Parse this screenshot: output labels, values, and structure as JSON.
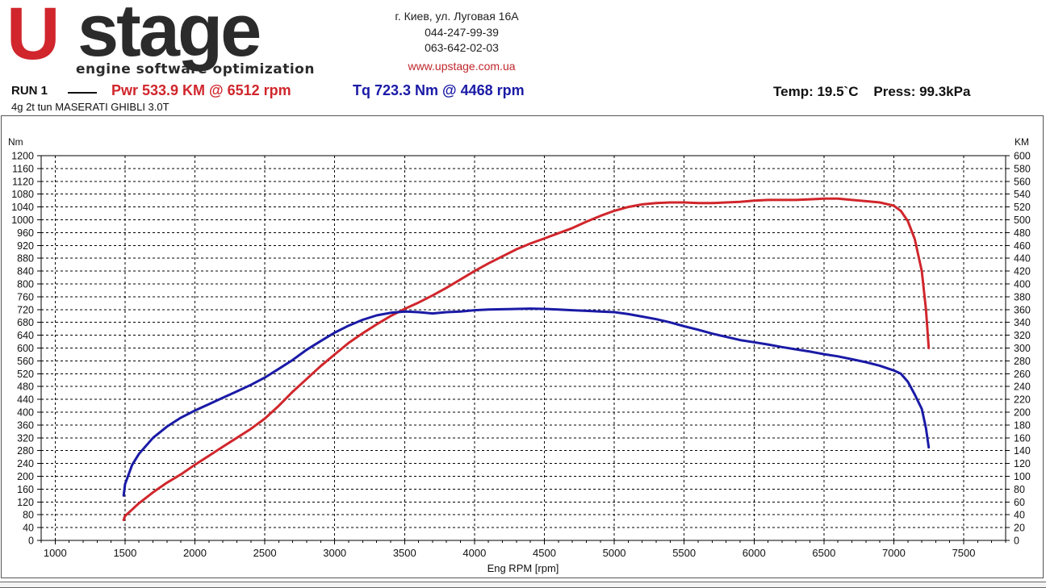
{
  "logo": {
    "brand_part1": "U",
    "brand_part2": "stage",
    "tagline": "engine software optimization"
  },
  "contact": {
    "address": "г. Киев, ул. Луговая 16А",
    "phone1": "044-247-99-39",
    "phone2": "063-642-02-03",
    "website": "www.upstage.com.ua"
  },
  "run": {
    "label": "RUN 1",
    "power_summary": "Pwr  533.9 KM @ 6512 rpm",
    "torque_summary": "Tq 723.3 Nm @ 4468 rpm",
    "conditions": "Temp: 19.5`C    Press: 99.3kPa",
    "vehicle": "4g 2t tun MASERATI GHIBLI 3.0T"
  },
  "colors": {
    "power": "#d0262c",
    "torque": "#1a1aa6",
    "brand_red": "#d0262c",
    "grid": "#000000"
  },
  "chart_data": {
    "type": "line",
    "xlabel": "Eng RPM [rpm]",
    "ylabel_left": "Nm",
    "ylabel_right": "KM",
    "xlim": [
      900,
      7800
    ],
    "xticks": [
      1000,
      1500,
      2000,
      2500,
      3000,
      3500,
      4000,
      4500,
      5000,
      5500,
      6000,
      6500,
      7000,
      7500
    ],
    "ylim_left": [
      0,
      1200
    ],
    "yticks_left_step": 40,
    "ylim_right": [
      0,
      600
    ],
    "yticks_right_step": 20,
    "grid": true,
    "series": [
      {
        "name": "Pwr",
        "axis": "right",
        "color": "#d0262c",
        "x": [
          1490,
          1500,
          1550,
          1600,
          1700,
          1800,
          1900,
          2000,
          2100,
          2200,
          2300,
          2400,
          2500,
          2600,
          2700,
          2800,
          2900,
          3000,
          3100,
          3200,
          3300,
          3400,
          3500,
          3600,
          3700,
          3800,
          3900,
          4000,
          4100,
          4200,
          4300,
          4400,
          4500,
          4600,
          4700,
          4800,
          4900,
          5000,
          5100,
          5200,
          5300,
          5400,
          5500,
          5600,
          5700,
          5800,
          5900,
          6000,
          6100,
          6200,
          6300,
          6400,
          6500,
          6600,
          6700,
          6800,
          6900,
          7000,
          7050,
          7100,
          7150,
          7200,
          7230,
          7250
        ],
        "values": [
          32,
          38,
          48,
          58,
          75,
          90,
          103,
          118,
          132,
          146,
          160,
          174,
          190,
          210,
          232,
          252,
          272,
          290,
          308,
          323,
          337,
          350,
          361,
          371,
          382,
          394,
          407,
          420,
          432,
          443,
          454,
          463,
          471,
          479,
          487,
          497,
          506,
          514,
          520,
          524,
          526,
          527,
          527,
          526,
          526,
          527,
          528,
          530,
          531,
          531,
          531,
          532,
          533,
          533,
          531,
          529,
          527,
          522,
          514,
          498,
          470,
          420,
          360,
          300
        ]
      },
      {
        "name": "Tq",
        "axis": "left",
        "color": "#1a1aa6",
        "x": [
          1490,
          1500,
          1550,
          1600,
          1700,
          1800,
          1900,
          2000,
          2100,
          2200,
          2300,
          2400,
          2500,
          2600,
          2700,
          2800,
          2900,
          3000,
          3100,
          3200,
          3300,
          3400,
          3500,
          3600,
          3700,
          3800,
          3900,
          4000,
          4100,
          4200,
          4300,
          4400,
          4500,
          4600,
          4700,
          4800,
          4900,
          5000,
          5100,
          5200,
          5300,
          5400,
          5500,
          5600,
          5700,
          5800,
          5900,
          6000,
          6100,
          6200,
          6300,
          6400,
          6500,
          6600,
          6700,
          6800,
          6900,
          7000,
          7050,
          7100,
          7150,
          7200,
          7230,
          7250
        ],
        "values": [
          140,
          175,
          235,
          270,
          320,
          355,
          383,
          405,
          425,
          445,
          465,
          485,
          508,
          535,
          563,
          595,
          622,
          648,
          670,
          688,
          702,
          710,
          714,
          712,
          708,
          712,
          714,
          718,
          720,
          721,
          722,
          723,
          722,
          720,
          718,
          716,
          714,
          712,
          706,
          698,
          690,
          680,
          668,
          657,
          645,
          635,
          625,
          618,
          611,
          603,
          596,
          589,
          581,
          574,
          565,
          556,
          545,
          530,
          520,
          495,
          455,
          410,
          350,
          290
        ]
      }
    ]
  }
}
